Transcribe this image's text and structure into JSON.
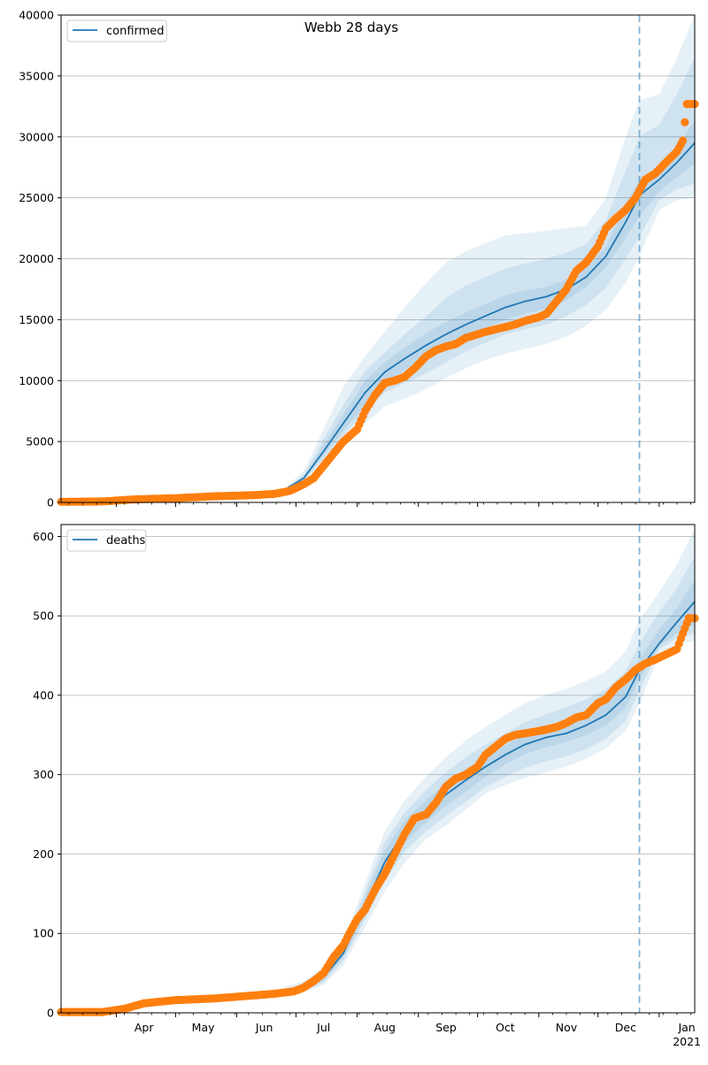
{
  "chart_data": {
    "type": "line",
    "title": "Webb 28 days",
    "x_months": [
      "Apr",
      "May",
      "Jun",
      "Jul",
      "Aug",
      "Sep",
      "Oct",
      "Nov",
      "Dec",
      "Jan"
    ],
    "x_year_label": "2021",
    "x_range": [
      "2020-03-04",
      "2021-01-19"
    ],
    "forecast_start": "2020-12-22",
    "grid": "horizontal",
    "band_color": "#1f77b4",
    "line_color": "#1f77b4",
    "point_color": "#ff7f0e",
    "panels": [
      {
        "legend": "confirmed",
        "legend_position": "top-left",
        "ylim": [
          0,
          40000
        ],
        "yticks": [
          "0",
          "5000",
          "10000",
          "15000",
          "20000",
          "25000",
          "30000",
          "35000",
          "40000"
        ],
        "model_line": {
          "x": [
            "2020-03-04",
            "2020-04-01",
            "2020-05-01",
            "2020-06-01",
            "2020-06-25",
            "2020-07-05",
            "2020-07-15",
            "2020-07-25",
            "2020-08-05",
            "2020-08-15",
            "2020-08-25",
            "2020-09-05",
            "2020-09-15",
            "2020-09-25",
            "2020-10-05",
            "2020-10-15",
            "2020-10-25",
            "2020-11-05",
            "2020-11-15",
            "2020-11-25",
            "2020-12-05",
            "2020-12-15",
            "2020-12-22",
            "2021-01-01",
            "2021-01-10",
            "2021-01-19"
          ],
          "y": [
            0,
            80,
            250,
            450,
            1000,
            2000,
            4200,
            6500,
            9000,
            10700,
            11800,
            12900,
            13800,
            14600,
            15300,
            16000,
            16500,
            16900,
            17500,
            18500,
            20200,
            23000,
            25200,
            26500,
            27900,
            29500
          ]
        },
        "bands": {
          "x": [
            "2020-06-25",
            "2020-07-05",
            "2020-07-15",
            "2020-07-25",
            "2020-08-05",
            "2020-08-15",
            "2020-08-25",
            "2020-09-05",
            "2020-09-15",
            "2020-09-25",
            "2020-10-05",
            "2020-10-15",
            "2020-10-25",
            "2020-11-05",
            "2020-11-15",
            "2020-11-25",
            "2020-12-05",
            "2020-12-15",
            "2020-12-22",
            "2021-01-01",
            "2021-01-10",
            "2021-01-19"
          ],
          "outer_upper": [
            1100,
            2600,
            6000,
            9500,
            12000,
            14000,
            16000,
            18000,
            19700,
            20600,
            21300,
            21900,
            22100,
            22300,
            22500,
            22700,
            25000,
            30000,
            33000,
            33500,
            36500,
            40000
          ],
          "outer_lower": [
            900,
            1500,
            3200,
            4500,
            6500,
            7900,
            8500,
            9300,
            10200,
            11000,
            11700,
            12200,
            12600,
            13000,
            13600,
            14500,
            15800,
            18000,
            20200,
            24000,
            24800,
            25000
          ],
          "middle_upper": [
            1050,
            2300,
            5200,
            8000,
            10800,
            12300,
            13800,
            15300,
            16800,
            17800,
            18500,
            19200,
            19600,
            20000,
            20500,
            21200,
            23200,
            27200,
            30000,
            31000,
            33500,
            36500
          ],
          "middle_lower": [
            950,
            1800,
            3600,
            5500,
            7500,
            9000,
            9800,
            10600,
            11500,
            12400,
            13100,
            13800,
            14200,
            14600,
            15300,
            16200,
            17600,
            20000,
            21800,
            24800,
            25700,
            26200
          ],
          "inner_upper": [
            1020,
            2150,
            4700,
            7200,
            10000,
            11500,
            12700,
            13900,
            14800,
            15600,
            16300,
            17000,
            17400,
            17700,
            18300,
            19200,
            21000,
            24300,
            26500,
            27600,
            29200,
            31300
          ],
          "inner_lower": [
            980,
            1900,
            3900,
            5900,
            8000,
            9700,
            10900,
            11900,
            12800,
            13600,
            14300,
            15000,
            15500,
            15900,
            16600,
            17700,
            19300,
            21700,
            23500,
            25500,
            26700,
            27800
          ]
        },
        "observed": {
          "x": [
            "2020-03-04",
            "2020-03-25",
            "2020-04-10",
            "2020-05-01",
            "2020-05-20",
            "2020-06-10",
            "2020-06-20",
            "2020-06-28",
            "2020-07-05",
            "2020-07-10",
            "2020-07-15",
            "2020-07-20",
            "2020-07-25",
            "2020-08-01",
            "2020-08-05",
            "2020-08-10",
            "2020-08-15",
            "2020-08-20",
            "2020-08-25",
            "2020-08-30",
            "2020-09-05",
            "2020-09-10",
            "2020-09-15",
            "2020-09-20",
            "2020-09-25",
            "2020-10-01",
            "2020-10-05",
            "2020-10-10",
            "2020-10-15",
            "2020-10-20",
            "2020-10-25",
            "2020-11-01",
            "2020-11-05",
            "2020-11-10",
            "2020-11-15",
            "2020-11-20",
            "2020-11-25",
            "2020-12-01",
            "2020-12-05",
            "2020-12-10",
            "2020-12-15",
            "2020-12-20",
            "2020-12-25",
            "2020-12-30",
            "2021-01-05",
            "2021-01-10",
            "2021-01-13",
            "2021-01-15",
            "2021-01-19"
          ],
          "y": [
            50,
            80,
            250,
            350,
            500,
            600,
            700,
            950,
            1500,
            2000,
            3000,
            4000,
            5000,
            6000,
            7500,
            8800,
            9800,
            10000,
            10300,
            11000,
            12000,
            12500,
            12800,
            13000,
            13500,
            13800,
            14000,
            14200,
            14400,
            14600,
            14900,
            15200,
            15500,
            16500,
            17500,
            19000,
            19700,
            21000,
            22500,
            23300,
            24000,
            25000,
            26500,
            27000,
            28000,
            28800,
            29700,
            32700,
            32700
          ]
        }
      },
      {
        "legend": "deaths",
        "legend_position": "top-left",
        "ylim": [
          0,
          615
        ],
        "yticks": [
          "0",
          "100",
          "200",
          "300",
          "400",
          "500",
          "600"
        ],
        "model_line": {
          "x": [
            "2020-03-04",
            "2020-04-01",
            "2020-05-01",
            "2020-06-01",
            "2020-06-25",
            "2020-07-05",
            "2020-07-15",
            "2020-07-25",
            "2020-08-05",
            "2020-08-15",
            "2020-08-25",
            "2020-09-05",
            "2020-09-15",
            "2020-09-25",
            "2020-10-05",
            "2020-10-15",
            "2020-10-25",
            "2020-11-05",
            "2020-11-15",
            "2020-11-25",
            "2020-12-05",
            "2020-12-15",
            "2020-12-22",
            "2021-01-01",
            "2021-01-10",
            "2021-01-19"
          ],
          "y": [
            1,
            4,
            15,
            20,
            26,
            32,
            45,
            75,
            135,
            190,
            228,
            254,
            275,
            293,
            310,
            325,
            338,
            347,
            352,
            362,
            375,
            398,
            432,
            465,
            492,
            518
          ]
        },
        "bands": {
          "x": [
            "2020-06-25",
            "2020-07-05",
            "2020-07-15",
            "2020-07-25",
            "2020-08-05",
            "2020-08-15",
            "2020-08-25",
            "2020-09-05",
            "2020-09-15",
            "2020-09-25",
            "2020-10-05",
            "2020-10-15",
            "2020-10-25",
            "2020-11-05",
            "2020-11-15",
            "2020-11-25",
            "2020-12-05",
            "2020-12-15",
            "2020-12-22",
            "2021-01-01",
            "2021-01-10",
            "2021-01-19"
          ],
          "outer_upper": [
            33,
            40,
            57,
            90,
            163,
            229,
            267,
            298,
            322,
            343,
            360,
            375,
            390,
            401,
            408,
            418,
            430,
            455,
            495,
            530,
            565,
            610
          ],
          "outer_lower": [
            20,
            26,
            35,
            60,
            108,
            153,
            189,
            219,
            236,
            256,
            276,
            287,
            296,
            303,
            310,
            320,
            333,
            355,
            390,
            450,
            465,
            468
          ],
          "middle_upper": [
            30,
            37,
            52,
            84,
            153,
            215,
            252,
            281,
            303,
            322,
            338,
            352,
            366,
            376,
            385,
            395,
            407,
            430,
            465,
            505,
            535,
            575
          ],
          "middle_lower": [
            22,
            28,
            38,
            66,
            118,
            166,
            203,
            229,
            248,
            266,
            284,
            297,
            309,
            317,
            323,
            332,
            345,
            368,
            405,
            458,
            472,
            478
          ],
          "inner_upper": [
            28,
            35,
            49,
            80,
            146,
            205,
            242,
            268,
            289,
            307,
            323,
            337,
            350,
            359,
            365,
            375,
            389,
            414,
            445,
            483,
            510,
            545
          ],
          "inner_lower": [
            24,
            30,
            41,
            70,
            124,
            175,
            214,
            240,
            261,
            279,
            297,
            313,
            326,
            335,
            341,
            350,
            362,
            384,
            420,
            462,
            478,
            490
          ]
        },
        "observed": {
          "x": [
            "2020-03-04",
            "2020-03-25",
            "2020-04-05",
            "2020-04-15",
            "2020-05-01",
            "2020-05-20",
            "2020-06-05",
            "2020-06-20",
            "2020-06-30",
            "2020-07-05",
            "2020-07-10",
            "2020-07-15",
            "2020-07-20",
            "2020-07-25",
            "2020-07-28",
            "2020-08-01",
            "2020-08-05",
            "2020-08-10",
            "2020-08-15",
            "2020-08-20",
            "2020-08-25",
            "2020-08-30",
            "2020-09-05",
            "2020-09-10",
            "2020-09-15",
            "2020-09-20",
            "2020-09-25",
            "2020-10-01",
            "2020-10-05",
            "2020-10-10",
            "2020-10-15",
            "2020-10-20",
            "2020-10-25",
            "2020-11-01",
            "2020-11-05",
            "2020-11-10",
            "2020-11-15",
            "2020-11-20",
            "2020-11-25",
            "2020-12-01",
            "2020-12-05",
            "2020-12-10",
            "2020-12-15",
            "2020-12-20",
            "2020-12-25",
            "2020-12-30",
            "2021-01-05",
            "2021-01-10",
            "2021-01-13",
            "2021-01-16",
            "2021-01-19"
          ],
          "y": [
            1,
            1,
            5,
            12,
            16,
            18,
            21,
            24,
            27,
            32,
            40,
            50,
            70,
            85,
            100,
            118,
            130,
            155,
            175,
            200,
            225,
            245,
            250,
            265,
            285,
            295,
            300,
            310,
            325,
            335,
            345,
            350,
            352,
            355,
            357,
            360,
            365,
            372,
            375,
            390,
            395,
            410,
            420,
            432,
            440,
            445,
            452,
            458,
            478,
            497,
            497
          ]
        }
      }
    ]
  }
}
